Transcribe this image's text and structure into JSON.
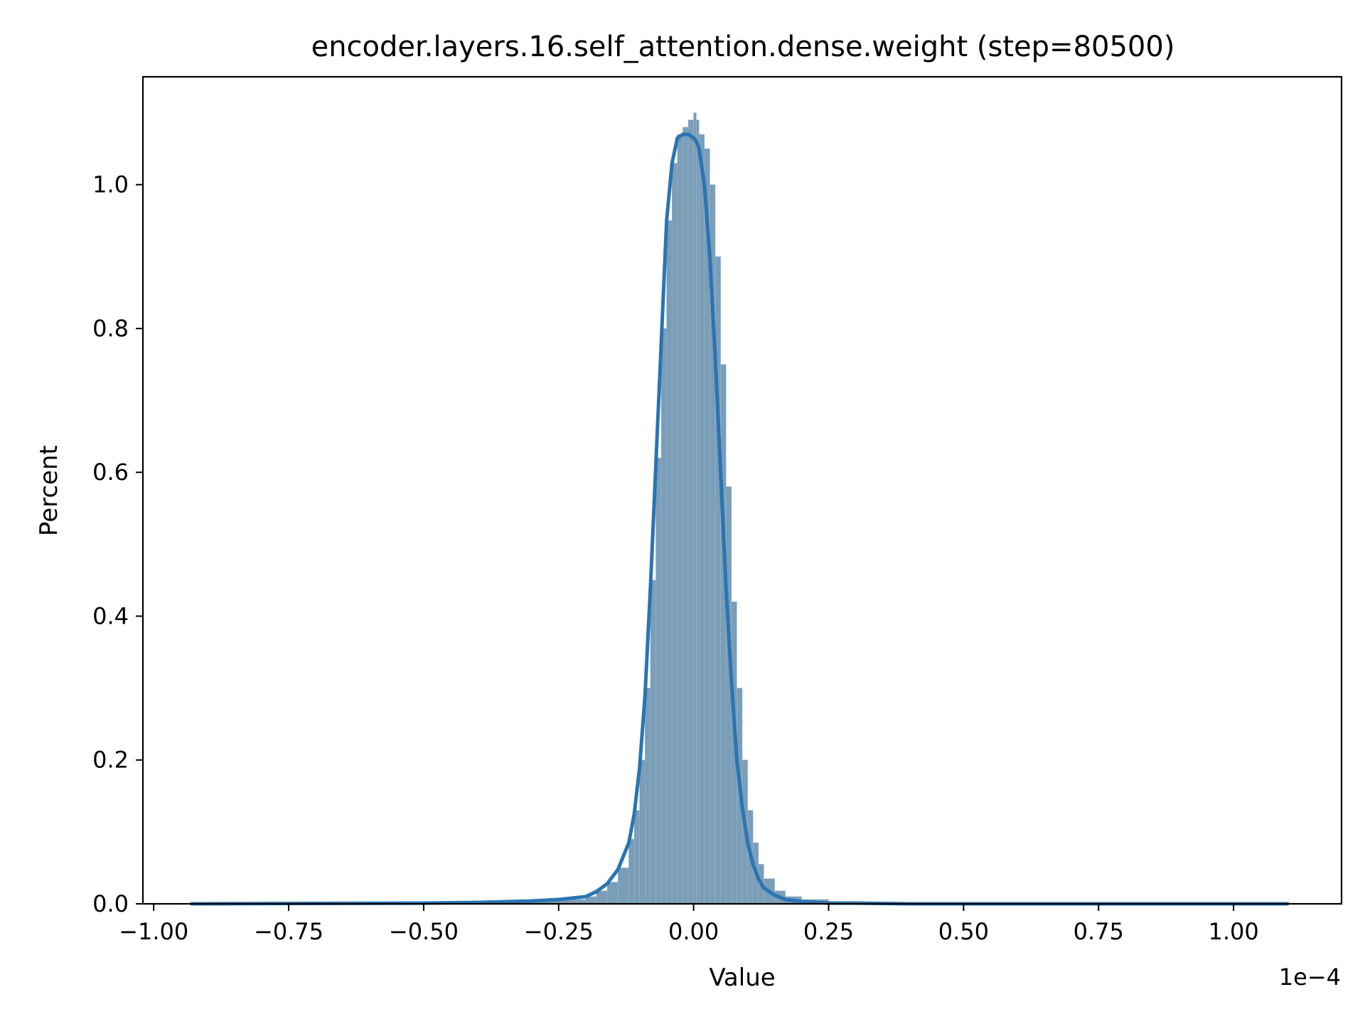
{
  "chart_data": {
    "type": "area",
    "title": "encoder.layers.16.self_attention.dense.weight (step=80500)",
    "xlabel": "Value",
    "ylabel": "Percent",
    "x_offset_label": "1e−4",
    "xlim": [
      -1.02,
      1.2
    ],
    "ylim": [
      0.0,
      1.15
    ],
    "x_ticks": [
      -1.0,
      -0.75,
      -0.5,
      -0.25,
      0.0,
      0.25,
      0.5,
      0.75,
      1.0
    ],
    "x_tick_labels": [
      "−1.00",
      "−0.75",
      "−0.50",
      "−0.25",
      "0.00",
      "0.25",
      "0.50",
      "0.75",
      "1.00"
    ],
    "y_ticks": [
      0.0,
      0.2,
      0.4,
      0.6,
      0.8,
      1.0
    ],
    "y_tick_labels": [
      "0.0",
      "0.2",
      "0.4",
      "0.6",
      "0.8",
      "1.0"
    ],
    "grid": false,
    "legend": "none",
    "bar_color": "#7a9db8",
    "line_color": "#2a74b2",
    "series": [
      {
        "kind": "histogram",
        "x": [
          -0.93,
          -0.5,
          -0.4,
          -0.3,
          -0.25,
          -0.2,
          -0.18,
          -0.16,
          -0.14,
          -0.12,
          -0.11,
          -0.1,
          -0.09,
          -0.08,
          -0.07,
          -0.06,
          -0.05,
          -0.04,
          -0.03,
          -0.02,
          -0.01,
          0.0,
          0.005,
          0.01,
          0.02,
          0.03,
          0.04,
          0.05,
          0.06,
          0.07,
          0.08,
          0.09,
          0.1,
          0.11,
          0.12,
          0.13,
          0.15,
          0.17,
          0.2,
          0.25,
          0.3,
          0.4,
          0.5,
          0.7,
          1.1
        ],
        "y": [
          0.0,
          0.001,
          0.002,
          0.004,
          0.006,
          0.01,
          0.018,
          0.03,
          0.05,
          0.09,
          0.13,
          0.2,
          0.3,
          0.45,
          0.62,
          0.8,
          0.95,
          1.03,
          1.07,
          1.08,
          1.09,
          1.1,
          1.09,
          1.07,
          1.05,
          1.0,
          0.9,
          0.75,
          0.58,
          0.42,
          0.3,
          0.2,
          0.13,
          0.085,
          0.055,
          0.035,
          0.018,
          0.01,
          0.006,
          0.003,
          0.002,
          0.001,
          0.001,
          0.0,
          0.0
        ]
      },
      {
        "kind": "kde",
        "x": [
          -0.93,
          -0.5,
          -0.4,
          -0.3,
          -0.25,
          -0.2,
          -0.18,
          -0.16,
          -0.14,
          -0.12,
          -0.11,
          -0.1,
          -0.09,
          -0.08,
          -0.07,
          -0.06,
          -0.05,
          -0.04,
          -0.03,
          -0.02,
          -0.01,
          0.0,
          0.005,
          0.01,
          0.02,
          0.03,
          0.04,
          0.05,
          0.06,
          0.07,
          0.08,
          0.09,
          0.1,
          0.11,
          0.12,
          0.13,
          0.15,
          0.17,
          0.2,
          0.25,
          0.3,
          0.4,
          0.5,
          0.7,
          1.1
        ],
        "y": [
          0.0,
          0.001,
          0.002,
          0.004,
          0.006,
          0.01,
          0.017,
          0.028,
          0.048,
          0.085,
          0.125,
          0.19,
          0.29,
          0.44,
          0.61,
          0.78,
          0.95,
          1.03,
          1.065,
          1.07,
          1.07,
          1.065,
          1.06,
          1.05,
          1.0,
          0.9,
          0.76,
          0.6,
          0.44,
          0.31,
          0.2,
          0.135,
          0.085,
          0.055,
          0.035,
          0.022,
          0.012,
          0.006,
          0.003,
          0.001,
          0.001,
          0.0,
          0.0,
          0.0,
          0.0
        ]
      }
    ]
  }
}
